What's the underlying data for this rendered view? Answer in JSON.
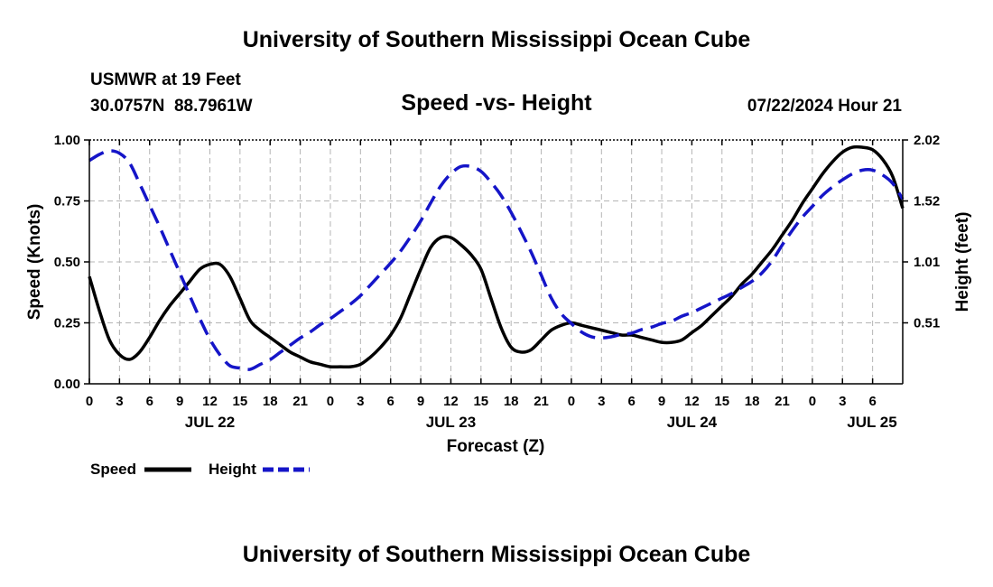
{
  "header": {
    "title": "University of Southern Mississippi Ocean Cube",
    "station": "USMWR at 19 Feet",
    "coords": "30.0757N  88.7961W",
    "subtitle": "Speed -vs- Height",
    "timestamp": "07/22/2024 Hour 21"
  },
  "footer": {
    "title": "University of Southern Mississippi Ocean Cube"
  },
  "colors": {
    "speed": "#000000",
    "height": "#1515c8",
    "grid": "#b4b4b4"
  },
  "chart_data": {
    "type": "line",
    "title": "Speed -vs- Height",
    "xlabel": "Forecast (Z)",
    "ylabel": "Speed (Knots)",
    "y2label": "Height (feet)",
    "x_range_hours": [
      0,
      81
    ],
    "ylim": [
      0,
      1
    ],
    "y2lim": [
      0,
      2.02
    ],
    "y_ticks": [
      "0.00",
      "0.25",
      "0.50",
      "0.75",
      "1.00"
    ],
    "y_tick_values": [
      0,
      0.25,
      0.5,
      0.75,
      1.0
    ],
    "y2_ticks": [
      "0.51",
      "1.01",
      "1.52",
      "2.02"
    ],
    "y2_tick_values": [
      0.505,
      1.01,
      1.515,
      2.02
    ],
    "x_ticks": [
      "0",
      "3",
      "6",
      "9",
      "12",
      "15",
      "18",
      "21",
      "0",
      "3",
      "6",
      "9",
      "12",
      "15",
      "18",
      "21",
      "0",
      "3",
      "6",
      "9",
      "12",
      "15",
      "18",
      "21",
      "0",
      "3",
      "6"
    ],
    "date_labels": [
      {
        "label": "JUL 22",
        "hour": 12
      },
      {
        "label": "JUL 23",
        "hour": 36
      },
      {
        "label": "JUL 24",
        "hour": 60
      },
      {
        "label": "JUL 25",
        "hour": 84
      }
    ],
    "legend": [
      {
        "name": "Speed",
        "style": "solid"
      },
      {
        "name": "Height",
        "style": "dashed"
      }
    ],
    "legend_position": "bottom-left",
    "grid": true,
    "series": [
      {
        "name": "Speed",
        "axis": "left",
        "x": [
          0,
          1,
          2,
          3,
          4,
          5,
          6,
          7,
          8,
          9,
          10,
          11,
          12,
          13,
          14,
          15,
          16,
          17,
          18,
          19,
          20,
          21,
          22,
          23,
          24,
          25,
          26,
          27,
          28,
          29,
          30,
          31,
          32,
          33,
          34,
          35,
          36,
          37,
          38,
          39,
          40,
          41,
          42,
          43,
          44,
          45,
          46,
          47,
          48,
          49,
          50,
          51,
          52,
          53,
          54,
          55,
          56,
          57,
          58,
          59,
          60,
          61,
          62,
          63,
          64,
          65,
          66,
          67,
          68,
          69,
          70,
          71,
          72,
          73,
          74,
          75,
          76,
          77,
          78,
          79,
          80,
          81
        ],
        "values": [
          0.44,
          0.3,
          0.18,
          0.12,
          0.1,
          0.13,
          0.19,
          0.26,
          0.32,
          0.37,
          0.42,
          0.47,
          0.49,
          0.49,
          0.44,
          0.35,
          0.26,
          0.22,
          0.19,
          0.16,
          0.13,
          0.11,
          0.09,
          0.08,
          0.07,
          0.07,
          0.07,
          0.08,
          0.11,
          0.15,
          0.2,
          0.27,
          0.37,
          0.47,
          0.56,
          0.6,
          0.6,
          0.57,
          0.53,
          0.47,
          0.35,
          0.23,
          0.15,
          0.13,
          0.14,
          0.18,
          0.22,
          0.24,
          0.25,
          0.24,
          0.23,
          0.22,
          0.21,
          0.2,
          0.2,
          0.19,
          0.18,
          0.17,
          0.17,
          0.18,
          0.21,
          0.24,
          0.28,
          0.32,
          0.36,
          0.41,
          0.45,
          0.5,
          0.55,
          0.61,
          0.67,
          0.74,
          0.8,
          0.86,
          0.91,
          0.95,
          0.97,
          0.97,
          0.96,
          0.92,
          0.85,
          0.72
        ]
      },
      {
        "name": "Height",
        "axis": "right",
        "x": [
          0,
          1,
          2,
          3,
          4,
          5,
          6,
          7,
          8,
          9,
          10,
          11,
          12,
          13,
          14,
          15,
          16,
          17,
          18,
          19,
          20,
          21,
          22,
          23,
          24,
          25,
          26,
          27,
          28,
          29,
          30,
          31,
          32,
          33,
          34,
          35,
          36,
          37,
          38,
          39,
          40,
          41,
          42,
          43,
          44,
          45,
          46,
          47,
          48,
          49,
          50,
          51,
          52,
          53,
          54,
          55,
          56,
          57,
          58,
          59,
          60,
          61,
          62,
          63,
          64,
          65,
          66,
          67,
          68,
          69,
          70,
          71,
          72,
          73,
          74,
          75,
          76,
          77,
          78,
          79,
          80,
          81
        ],
        "values": [
          1.85,
          1.9,
          1.93,
          1.91,
          1.83,
          1.66,
          1.48,
          1.3,
          1.11,
          0.92,
          0.73,
          0.54,
          0.37,
          0.24,
          0.15,
          0.13,
          0.12,
          0.16,
          0.2,
          0.26,
          0.32,
          0.38,
          0.43,
          0.49,
          0.54,
          0.6,
          0.66,
          0.73,
          0.82,
          0.91,
          1.0,
          1.1,
          1.22,
          1.35,
          1.5,
          1.64,
          1.74,
          1.8,
          1.8,
          1.76,
          1.67,
          1.56,
          1.42,
          1.26,
          1.09,
          0.9,
          0.71,
          0.58,
          0.5,
          0.43,
          0.39,
          0.38,
          0.39,
          0.41,
          0.42,
          0.45,
          0.47,
          0.5,
          0.52,
          0.56,
          0.59,
          0.63,
          0.67,
          0.71,
          0.75,
          0.8,
          0.85,
          0.92,
          1.02,
          1.15,
          1.27,
          1.38,
          1.47,
          1.56,
          1.63,
          1.69,
          1.74,
          1.77,
          1.77,
          1.73,
          1.66,
          1.53
        ]
      }
    ]
  }
}
